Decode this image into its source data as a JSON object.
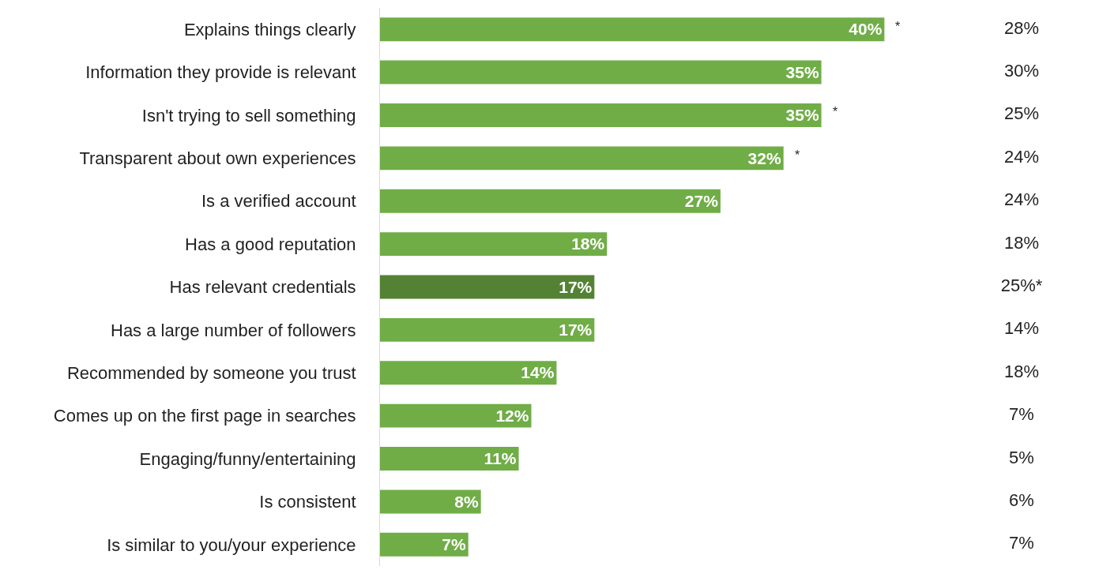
{
  "chart_data": [
    {
      "type": "bar",
      "orientation": "horizontal",
      "categories": [
        "Explains things clearly",
        "Information they provide is relevant",
        "Isn't trying to sell something",
        "Transparent about own experiences",
        "Is a verified account",
        "Has a good reputation",
        "Has relevant credentials",
        "Has a large number of followers",
        "Recommended by someone you trust",
        "Comes up on the first page in searches",
        "Engaging/funny/entertaining",
        "Is consistent",
        "Is similar to you/your experience"
      ],
      "values": [
        40,
        35,
        35,
        32,
        27,
        18,
        17,
        17,
        14,
        12,
        11,
        8,
        7
      ],
      "value_labels": [
        "40%",
        "35%",
        "35%",
        "32%",
        "27%",
        "18%",
        "17%",
        "17%",
        "14%",
        "12%",
        "11%",
        "8%",
        "7%"
      ],
      "colors": [
        "#70ad47",
        "#70ad47",
        "#70ad47",
        "#70ad47",
        "#70ad47",
        "#70ad47",
        "#548235",
        "#70ad47",
        "#70ad47",
        "#70ad47",
        "#70ad47",
        "#70ad47",
        "#70ad47"
      ],
      "tick_labels": "y",
      "annotations": [
        {
          "text": "*",
          "x": 40,
          "y": "Explains things clearly"
        },
        {
          "text": "*",
          "x": 35,
          "y": "Isn't trying to sell something"
        },
        {
          "text": "*",
          "x": 32,
          "y": "Transparent about own experiences"
        }
      ]
    },
    {
      "type": "other",
      "categories": [
        null,
        null,
        null,
        null,
        null,
        null,
        null,
        null,
        null,
        null,
        null,
        null,
        null
      ],
      "values": [
        28,
        30,
        25,
        24,
        24,
        18,
        25,
        14,
        18,
        7,
        5,
        6,
        7
      ],
      "value_labels": [
        "28%",
        "30%",
        "25%",
        "24%",
        "24%",
        "18%",
        "25%*",
        "14%",
        "18%",
        "7%",
        "5%",
        "6%",
        "7%"
      ]
    }
  ]
}
